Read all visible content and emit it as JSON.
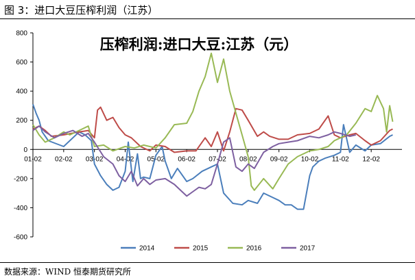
{
  "figure_title": "图 3：进口大豆压榨利润（江苏）",
  "source": "数据来源：WIND 恒泰期货研究所",
  "chart_data": {
    "type": "line",
    "title": "压榨利润:进口大豆:江苏（元）",
    "xlabel": "",
    "ylabel": "",
    "x_domain": [
      0,
      12
    ],
    "x_ticks": [
      {
        "label": "01-02",
        "x": 0
      },
      {
        "label": "02-02",
        "x": 1
      },
      {
        "label": "03-02",
        "x": 2
      },
      {
        "label": "04-02",
        "x": 3
      },
      {
        "label": "05-02",
        "x": 4
      },
      {
        "label": "06-02",
        "x": 5
      },
      {
        "label": "07-02",
        "x": 6
      },
      {
        "label": "08-02",
        "x": 7
      },
      {
        "label": "09-02",
        "x": 8
      },
      {
        "label": "10-02",
        "x": 9
      },
      {
        "label": "11-02",
        "x": 10
      },
      {
        "label": "12-02",
        "x": 11
      }
    ],
    "ylim": [
      -600,
      800
    ],
    "y_ticks": [
      -600,
      -400,
      -200,
      0,
      200,
      400,
      600,
      800
    ],
    "legend_position": "bottom",
    "series": [
      {
        "name": "2014",
        "color": "#4a7ebb",
        "x": [
          0,
          0.1,
          0.2,
          0.3,
          0.5,
          1.0,
          1.5,
          1.7,
          1.9,
          2.0,
          2.2,
          2.4,
          2.6,
          2.8,
          3.0,
          3.1,
          3.25,
          3.4,
          3.5,
          3.6,
          3.8,
          4.0,
          4.2,
          4.3,
          4.5,
          4.7,
          4.8,
          5.0,
          5.2,
          5.5,
          5.8,
          6.0,
          6.2,
          6.5,
          6.8,
          7.0,
          7.3,
          7.5,
          7.8,
          8.0,
          8.2,
          8.4,
          8.6,
          8.8,
          9.0,
          9.1,
          9.3,
          9.5,
          9.8,
          10.0,
          10.1,
          10.3,
          10.5,
          10.8,
          11.0,
          11.3,
          11.6,
          11.7
        ],
        "y": [
          310,
          250,
          200,
          120,
          60,
          20,
          120,
          100,
          60,
          -100,
          -180,
          -240,
          -280,
          -260,
          -150,
          50,
          -220,
          -30,
          -200,
          -190,
          -200,
          -40,
          20,
          -80,
          -200,
          -130,
          -160,
          -220,
          -200,
          -150,
          -120,
          -100,
          -300,
          -370,
          -380,
          -350,
          -370,
          -300,
          -330,
          -350,
          -380,
          -380,
          -410,
          -410,
          -180,
          -120,
          -80,
          -60,
          -40,
          -20,
          170,
          -20,
          30,
          -10,
          30,
          40,
          90,
          100
        ]
      },
      {
        "name": "2015",
        "color": "#be4b48",
        "x": [
          0,
          0.2,
          0.4,
          0.6,
          1.0,
          1.5,
          1.8,
          2.0,
          2.1,
          2.2,
          2.4,
          2.6,
          2.8,
          3.0,
          3.2,
          3.5,
          3.8,
          4.0,
          4.3,
          4.6,
          5.0,
          5.3,
          5.6,
          5.8,
          6.0,
          6.2,
          6.4,
          6.6,
          6.8,
          7.0,
          7.3,
          7.5,
          7.7,
          8.0,
          8.3,
          8.6,
          9.0,
          9.3,
          9.6,
          9.8,
          10.0,
          10.3,
          10.5,
          10.8,
          11.0,
          11.3,
          11.6,
          11.7
        ],
        "y": [
          140,
          160,
          130,
          90,
          100,
          120,
          130,
          80,
          270,
          290,
          200,
          220,
          150,
          100,
          80,
          20,
          -10,
          30,
          20,
          -20,
          -10,
          -10,
          80,
          20,
          120,
          -10,
          120,
          280,
          270,
          200,
          90,
          120,
          90,
          70,
          70,
          100,
          110,
          140,
          230,
          100,
          80,
          100,
          110,
          60,
          30,
          60,
          130,
          140
        ]
      },
      {
        "name": "2016",
        "color": "#98b954",
        "x": [
          0,
          0.2,
          0.4,
          0.7,
          1.0,
          1.2,
          1.5,
          1.8,
          2.0,
          2.3,
          2.6,
          3.0,
          3.3,
          3.6,
          4.0,
          4.3,
          4.6,
          5.0,
          5.2,
          5.4,
          5.6,
          5.8,
          5.9,
          6.0,
          6.2,
          6.4,
          6.6,
          6.8,
          7.0,
          7.1,
          7.2,
          7.5,
          7.8,
          8.0,
          8.3,
          8.6,
          9.0,
          9.3,
          9.6,
          9.8,
          10.0,
          10.2,
          10.5,
          10.8,
          11.0,
          11.2,
          11.4,
          11.5,
          11.6,
          11.7
        ],
        "y": [
          170,
          100,
          50,
          80,
          120,
          100,
          130,
          160,
          20,
          30,
          -10,
          20,
          10,
          30,
          10,
          80,
          170,
          180,
          260,
          400,
          500,
          660,
          560,
          460,
          620,
          400,
          250,
          100,
          -50,
          -250,
          -280,
          -200,
          -270,
          -200,
          -100,
          -50,
          -10,
          0,
          20,
          60,
          80,
          100,
          180,
          280,
          260,
          370,
          280,
          120,
          300,
          190
        ]
      },
      {
        "name": "2017",
        "color": "#7d5fa0",
        "x": [
          0,
          0.2,
          0.4,
          0.7,
          1.0,
          1.3,
          1.6,
          1.8,
          2.0,
          2.3,
          2.6,
          2.8,
          3.0,
          3.2,
          3.4,
          3.6,
          3.8,
          4.0,
          4.3,
          4.6,
          5.0,
          5.2,
          5.4,
          5.6,
          5.8,
          6.0,
          6.2,
          6.4,
          6.6,
          6.8,
          7.0,
          7.2,
          7.5,
          7.8,
          8.0,
          8.3,
          8.6,
          9.0,
          9.3,
          9.6,
          9.8,
          10.0,
          10.3,
          10.5
        ],
        "y": [
          130,
          160,
          120,
          80,
          110,
          130,
          90,
          110,
          50,
          -50,
          -100,
          -180,
          -220,
          -150,
          -250,
          -200,
          -240,
          -210,
          -200,
          -240,
          -320,
          -290,
          -260,
          -270,
          -240,
          -100,
          50,
          80,
          -120,
          -150,
          -100,
          -130,
          -20,
          20,
          40,
          50,
          60,
          90,
          80,
          100,
          120,
          110,
          90,
          100
        ]
      }
    ]
  }
}
